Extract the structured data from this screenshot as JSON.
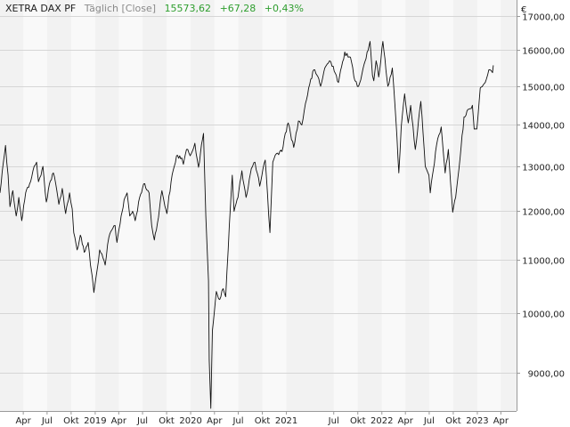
{
  "header": {
    "instrument": "XETRA DAX PF",
    "frequency": "Täglich [Close]",
    "last": "15573,62",
    "change": "+67,28",
    "change_pct": "+0,43%"
  },
  "colors": {
    "line": "#111111",
    "band": "#f2f2f2",
    "grid": "#d6d6d6",
    "positive": "#2e9e2e",
    "text": "#222222"
  },
  "chart_data": {
    "type": "line",
    "title": "",
    "xlabel": "",
    "ylabel": "€",
    "ylim": [
      8400,
      17500
    ],
    "xlim": [
      "2018-01-02",
      "2023-05-31"
    ],
    "y_scale": "log",
    "grid": true,
    "y_ticks": [
      {
        "value": 9000,
        "label": "9000,00"
      },
      {
        "value": 10000,
        "label": "10000,00"
      },
      {
        "value": 11000,
        "label": "11000,00"
      },
      {
        "value": 12000,
        "label": "12000,00"
      },
      {
        "value": 13000,
        "label": "13000,00"
      },
      {
        "value": 14000,
        "label": "14000,00"
      },
      {
        "value": 15000,
        "label": "15000,00"
      },
      {
        "value": 16000,
        "label": "16000,00"
      },
      {
        "value": 17000,
        "label": "17000,00"
      }
    ],
    "x_ticks": [
      {
        "date": "2018-04-01",
        "label": "Apr"
      },
      {
        "date": "2018-07-01",
        "label": "Jul"
      },
      {
        "date": "2018-10-01",
        "label": "Okt"
      },
      {
        "date": "2019-01-01",
        "label": "2019"
      },
      {
        "date": "2019-04-01",
        "label": "Apr"
      },
      {
        "date": "2019-07-01",
        "label": "Jul"
      },
      {
        "date": "2019-10-01",
        "label": "Okt"
      },
      {
        "date": "2020-01-01",
        "label": "2020"
      },
      {
        "date": "2020-04-01",
        "label": "Apr"
      },
      {
        "date": "2020-07-01",
        "label": "Jul"
      },
      {
        "date": "2020-10-01",
        "label": "Okt"
      },
      {
        "date": "2021-01-01",
        "label": "2021"
      },
      {
        "date": "2021-07-01",
        "label": "Jul"
      },
      {
        "date": "2021-10-01",
        "label": "Okt"
      },
      {
        "date": "2022-01-01",
        "label": "2022"
      },
      {
        "date": "2022-04-01",
        "label": "Apr"
      },
      {
        "date": "2022-07-01",
        "label": "Jul"
      },
      {
        "date": "2022-10-01",
        "label": "Okt"
      },
      {
        "date": "2023-01-01",
        "label": "2023"
      },
      {
        "date": "2023-04-01",
        "label": "Apr"
      }
    ],
    "series": [
      {
        "name": "XETRA DAX PF",
        "points": [
          [
            "2018-01-02",
            12400
          ],
          [
            "2018-01-15",
            13100
          ],
          [
            "2018-01-23",
            13500
          ],
          [
            "2018-02-02",
            12800
          ],
          [
            "2018-02-09",
            12100
          ],
          [
            "2018-02-20",
            12450
          ],
          [
            "2018-03-05",
            11900
          ],
          [
            "2018-03-15",
            12300
          ],
          [
            "2018-03-26",
            11800
          ],
          [
            "2018-04-10",
            12400
          ],
          [
            "2018-04-25",
            12600
          ],
          [
            "2018-05-08",
            12900
          ],
          [
            "2018-05-22",
            13100
          ],
          [
            "2018-05-29",
            12650
          ],
          [
            "2018-06-08",
            12800
          ],
          [
            "2018-06-15",
            13000
          ],
          [
            "2018-06-28",
            12200
          ],
          [
            "2018-07-10",
            12600
          ],
          [
            "2018-07-25",
            12850
          ],
          [
            "2018-08-03",
            12600
          ],
          [
            "2018-08-15",
            12150
          ],
          [
            "2018-08-28",
            12500
          ],
          [
            "2018-09-10",
            11950
          ],
          [
            "2018-09-25",
            12400
          ],
          [
            "2018-10-05",
            12050
          ],
          [
            "2018-10-11",
            11550
          ],
          [
            "2018-10-24",
            11200
          ],
          [
            "2018-11-05",
            11500
          ],
          [
            "2018-11-20",
            11150
          ],
          [
            "2018-12-05",
            11350
          ],
          [
            "2018-12-14",
            10900
          ],
          [
            "2018-12-20",
            10700
          ],
          [
            "2018-12-27",
            10380
          ],
          [
            "2019-01-08",
            10800
          ],
          [
            "2019-01-18",
            11200
          ],
          [
            "2019-02-08",
            10900
          ],
          [
            "2019-02-22",
            11450
          ],
          [
            "2019-03-05",
            11600
          ],
          [
            "2019-03-18",
            11700
          ],
          [
            "2019-03-25",
            11350
          ],
          [
            "2019-04-10",
            11900
          ],
          [
            "2019-04-25",
            12300
          ],
          [
            "2019-05-03",
            12400
          ],
          [
            "2019-05-13",
            11900
          ],
          [
            "2019-05-24",
            12000
          ],
          [
            "2019-06-03",
            11800
          ],
          [
            "2019-06-20",
            12300
          ],
          [
            "2019-07-05",
            12600
          ],
          [
            "2019-07-26",
            12400
          ],
          [
            "2019-08-05",
            11700
          ],
          [
            "2019-08-15",
            11400
          ],
          [
            "2019-08-27",
            11750
          ],
          [
            "2019-09-13",
            12450
          ],
          [
            "2019-10-02",
            11950
          ],
          [
            "2019-10-18",
            12650
          ],
          [
            "2019-11-08",
            13250
          ],
          [
            "2019-11-28",
            13200
          ],
          [
            "2019-12-04",
            13050
          ],
          [
            "2019-12-16",
            13400
          ],
          [
            "2019-12-30",
            13250
          ],
          [
            "2020-01-17",
            13550
          ],
          [
            "2020-01-31",
            12980
          ],
          [
            "2020-02-19",
            13790
          ],
          [
            "2020-02-28",
            11900
          ],
          [
            "2020-03-09",
            10600
          ],
          [
            "2020-03-12",
            9200
          ],
          [
            "2020-03-18",
            8440
          ],
          [
            "2020-03-24",
            9700
          ],
          [
            "2020-04-08",
            10400
          ],
          [
            "2020-04-21",
            10250
          ],
          [
            "2020-05-04",
            10450
          ],
          [
            "2020-05-14",
            10300
          ],
          [
            "2020-05-28",
            11700
          ],
          [
            "2020-06-08",
            12800
          ],
          [
            "2020-06-15",
            12000
          ],
          [
            "2020-06-30",
            12300
          ],
          [
            "2020-07-15",
            12900
          ],
          [
            "2020-07-31",
            12300
          ],
          [
            "2020-08-20",
            12950
          ],
          [
            "2020-09-03",
            13100
          ],
          [
            "2020-09-21",
            12550
          ],
          [
            "2020-10-12",
            13150
          ],
          [
            "2020-10-30",
            11550
          ],
          [
            "2020-11-10",
            13100
          ],
          [
            "2020-11-24",
            13300
          ],
          [
            "2020-12-15",
            13350
          ],
          [
            "2020-12-28",
            13800
          ],
          [
            "2021-01-08",
            14050
          ],
          [
            "2021-01-29",
            13450
          ],
          [
            "2021-02-16",
            14100
          ],
          [
            "2021-03-01",
            14000
          ],
          [
            "2021-03-15",
            14550
          ],
          [
            "2021-03-31",
            15050
          ],
          [
            "2021-04-16",
            15450
          ],
          [
            "2021-05-05",
            15200
          ],
          [
            "2021-05-12",
            15000
          ],
          [
            "2021-05-28",
            15500
          ],
          [
            "2021-06-15",
            15700
          ],
          [
            "2021-06-29",
            15550
          ],
          [
            "2021-07-19",
            15100
          ],
          [
            "2021-08-12",
            15950
          ],
          [
            "2021-08-25",
            15800
          ],
          [
            "2021-09-03",
            15800
          ],
          [
            "2021-09-20",
            15150
          ],
          [
            "2021-10-04",
            15000
          ],
          [
            "2021-10-25",
            15600
          ],
          [
            "2021-11-17",
            16250
          ],
          [
            "2021-11-26",
            15300
          ],
          [
            "2021-12-01",
            15150
          ],
          [
            "2021-12-10",
            15700
          ],
          [
            "2021-12-20",
            15250
          ],
          [
            "2022-01-05",
            16250
          ],
          [
            "2022-01-24",
            15000
          ],
          [
            "2022-02-10",
            15500
          ],
          [
            "2022-02-24",
            14100
          ],
          [
            "2022-03-07",
            12850
          ],
          [
            "2022-03-16",
            13950
          ],
          [
            "2022-03-29",
            14800
          ],
          [
            "2022-04-12",
            14050
          ],
          [
            "2022-04-21",
            14500
          ],
          [
            "2022-05-09",
            13400
          ],
          [
            "2022-05-30",
            14600
          ],
          [
            "2022-06-16",
            13000
          ],
          [
            "2022-06-30",
            12800
          ],
          [
            "2022-07-05",
            12400
          ],
          [
            "2022-07-29",
            13500
          ],
          [
            "2022-08-16",
            13950
          ],
          [
            "2022-08-31",
            12850
          ],
          [
            "2022-09-12",
            13400
          ],
          [
            "2022-09-29",
            11980
          ],
          [
            "2022-10-10",
            12300
          ],
          [
            "2022-10-27",
            13200
          ],
          [
            "2022-11-11",
            14200
          ],
          [
            "2022-11-30",
            14400
          ],
          [
            "2022-12-13",
            14500
          ],
          [
            "2022-12-20",
            13900
          ],
          [
            "2022-12-30",
            13900
          ],
          [
            "2023-01-12",
            14950
          ],
          [
            "2023-01-31",
            15100
          ],
          [
            "2023-02-14",
            15450
          ],
          [
            "2023-02-28",
            15370
          ],
          [
            "2023-03-03",
            15573.62
          ]
        ]
      }
    ]
  }
}
